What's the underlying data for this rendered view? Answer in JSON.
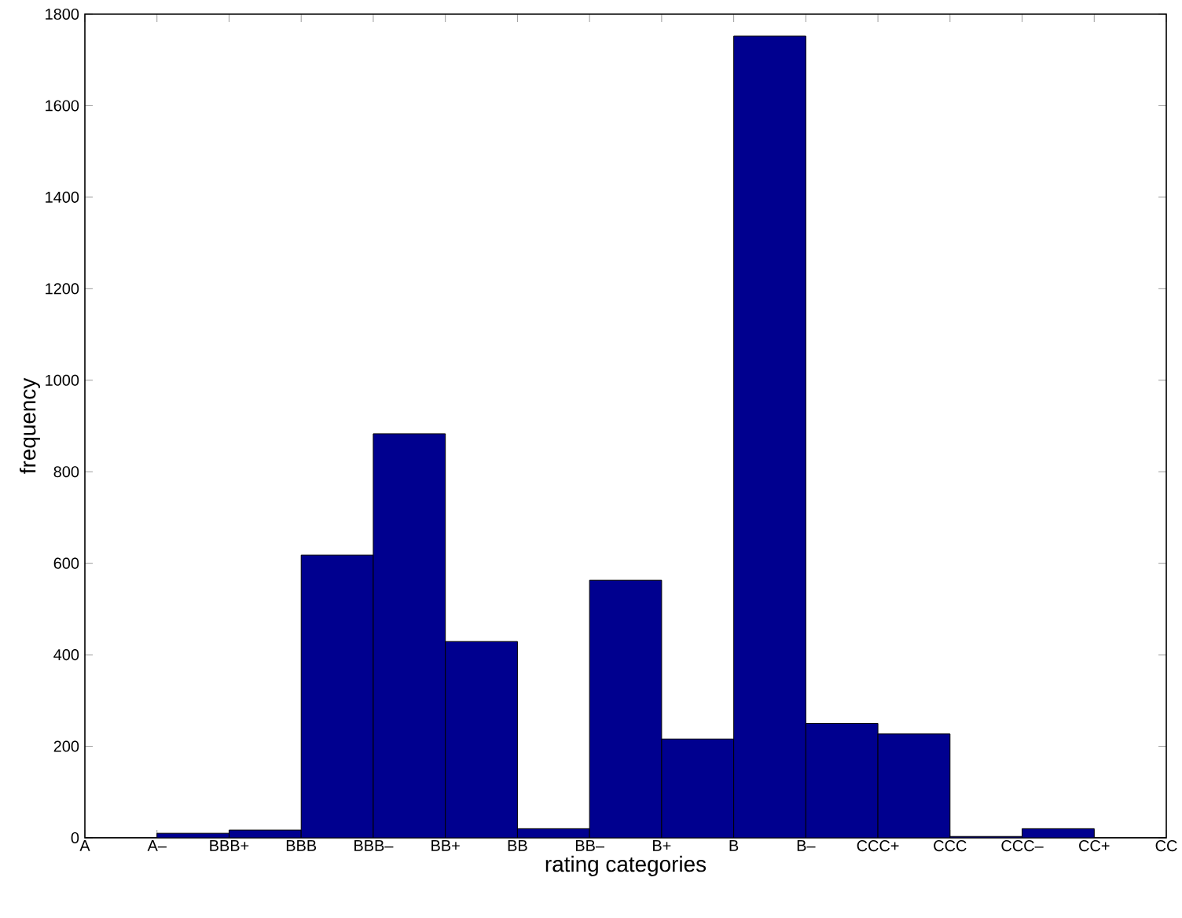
{
  "chart_data": {
    "type": "bar",
    "xlabel": "rating categories",
    "ylabel": "frequency",
    "color": "#00008f",
    "categories": [
      "A",
      "A–",
      "BBB+",
      "BBB",
      "BBB–",
      "BB+",
      "BB",
      "BB–",
      "B+",
      "B",
      "B–",
      "CCC+",
      "CCC",
      "CCC–",
      "CC+",
      "CC"
    ],
    "values": [
      0,
      10,
      17,
      618,
      883,
      429,
      20,
      563,
      216,
      1752,
      250,
      227,
      3,
      20,
      0,
      null
    ],
    "ylim": [
      0,
      1800
    ],
    "yticks": [
      0,
      200,
      400,
      600,
      800,
      1000,
      1200,
      1400,
      1600,
      1800
    ],
    "grid": false
  }
}
